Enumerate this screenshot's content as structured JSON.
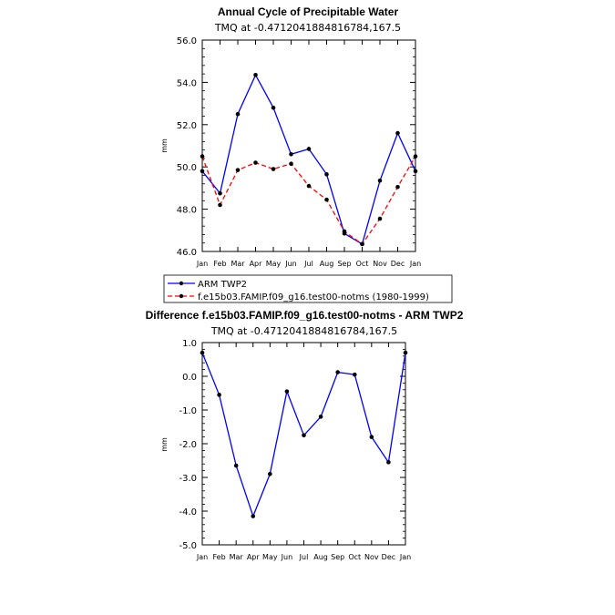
{
  "chart_data": [
    {
      "type": "line",
      "title": "Annual Cycle of Precipitable Water",
      "subtitle": "TMQ at -0.4712041884816784,167.5",
      "ylabel": "mm",
      "categories": [
        "Jan",
        "Feb",
        "Mar",
        "Apr",
        "May",
        "Jun",
        "Jul",
        "Aug",
        "Sep",
        "Oct",
        "Nov",
        "Dec",
        "Jan"
      ],
      "ylim": [
        46.0,
        56.0
      ],
      "yticks": [
        "46.0",
        "48.0",
        "50.0",
        "52.0",
        "54.0",
        "56.0"
      ],
      "series": [
        {
          "name": "ARM  TWP2",
          "color": "#0000ff",
          "dash": "solid",
          "values": [
            49.8,
            48.75,
            52.5,
            54.35,
            52.8,
            50.6,
            50.85,
            49.65,
            46.85,
            46.35,
            49.35,
            51.6,
            49.8
          ]
        },
        {
          "name": "f.e15b03.FAMIP.f09_g16.test00-notms (1980-1999)",
          "color": "#ff0000",
          "dash": "dashed",
          "values": [
            50.5,
            48.2,
            49.85,
            50.2,
            49.9,
            50.15,
            49.1,
            48.45,
            46.95,
            46.35,
            47.55,
            49.05,
            50.5
          ]
        }
      ],
      "legend": [
        "ARM  TWP2",
        "f.e15b03.FAMIP.f09_g16.test00-notms (1980-1999)"
      ]
    },
    {
      "type": "line",
      "title": "Difference f.e15b03.FAMIP.f09_g16.test00-notms - ARM TWP2",
      "subtitle": "TMQ at -0.4712041884816784,167.5",
      "ylabel": "mm",
      "categories": [
        "Jan",
        "Feb",
        "Mar",
        "Apr",
        "May",
        "Jun",
        "Jul",
        "Aug",
        "Sep",
        "Oct",
        "Nov",
        "Dec",
        "Jan"
      ],
      "ylim": [
        -5.0,
        1.0
      ],
      "yticks": [
        "-5.0",
        "-4.0",
        "-3.0",
        "-2.0",
        "-1.0",
        "0.0",
        "1.0"
      ],
      "series": [
        {
          "name": "Difference",
          "color": "#0000ff",
          "dash": "solid",
          "values": [
            0.7,
            -0.55,
            -2.65,
            -4.15,
            -2.9,
            -0.45,
            -1.75,
            -1.2,
            0.12,
            0.05,
            -1.8,
            -2.55,
            0.7
          ]
        }
      ]
    }
  ]
}
